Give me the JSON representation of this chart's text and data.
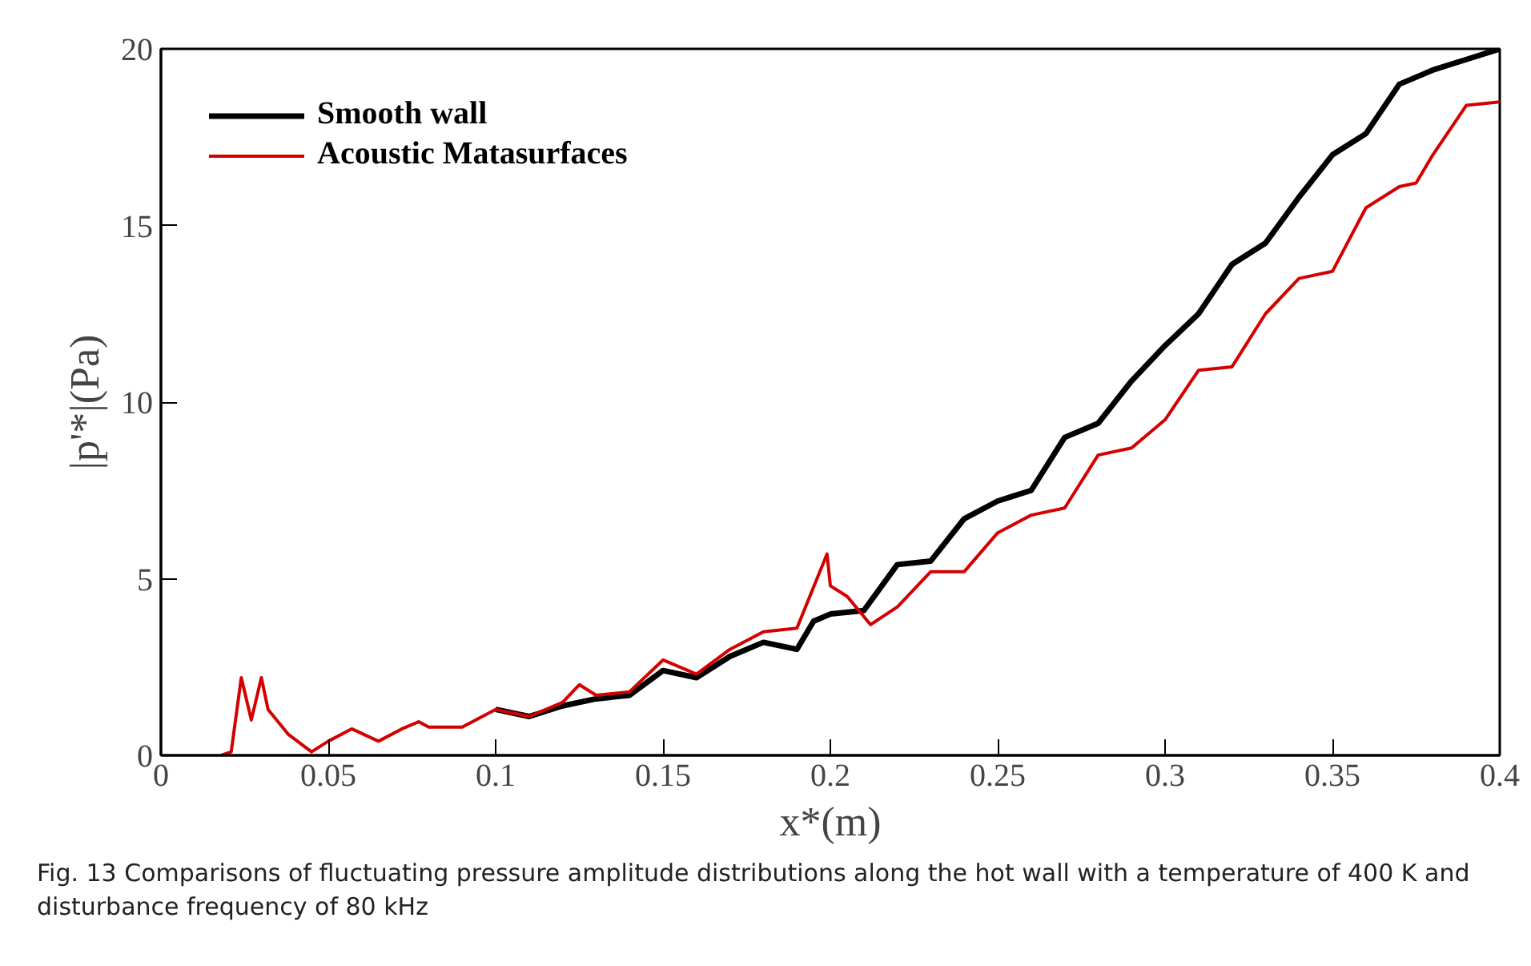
{
  "chart_data": {
    "type": "line",
    "xlabel": "x*(m)",
    "ylabel": "|p'*|(Pa)",
    "xlim": [
      0,
      0.4
    ],
    "ylim": [
      0,
      20
    ],
    "xticks": [
      0,
      0.05,
      0.1,
      0.15,
      0.2,
      0.25,
      0.3,
      0.35,
      0.4
    ],
    "yticks": [
      0,
      5,
      10,
      15,
      20
    ],
    "grid": false,
    "legend": "top left",
    "line_style": "solid",
    "series": [
      {
        "name": "Smooth wall",
        "color": "#000000",
        "x": [
          0.1,
          0.11,
          0.12,
          0.13,
          0.14,
          0.15,
          0.16,
          0.17,
          0.18,
          0.19,
          0.195,
          0.2,
          0.21,
          0.22,
          0.23,
          0.24,
          0.25,
          0.26,
          0.27,
          0.28,
          0.29,
          0.3,
          0.31,
          0.32,
          0.33,
          0.34,
          0.35,
          0.36,
          0.37,
          0.38,
          0.39,
          0.4
        ],
        "values": [
          1.3,
          1.1,
          1.4,
          1.6,
          1.7,
          2.4,
          2.2,
          2.8,
          3.2,
          3.0,
          3.8,
          4.0,
          4.1,
          5.4,
          5.5,
          6.7,
          7.2,
          7.5,
          9.0,
          9.4,
          10.6,
          11.6,
          12.5,
          13.9,
          14.5,
          15.8,
          17.0,
          17.6,
          19.0,
          19.4,
          19.7,
          20.0
        ]
      },
      {
        "name": "Acoustic Matasurfaces",
        "color": "#d40000",
        "x": [
          0.018,
          0.021,
          0.024,
          0.027,
          0.03,
          0.032,
          0.038,
          0.045,
          0.05,
          0.057,
          0.065,
          0.072,
          0.077,
          0.08,
          0.09,
          0.1,
          0.11,
          0.12,
          0.125,
          0.13,
          0.14,
          0.15,
          0.16,
          0.17,
          0.18,
          0.19,
          0.199,
          0.2,
          0.205,
          0.212,
          0.22,
          0.23,
          0.24,
          0.25,
          0.26,
          0.27,
          0.28,
          0.29,
          0.3,
          0.31,
          0.32,
          0.33,
          0.34,
          0.35,
          0.36,
          0.37,
          0.375,
          0.38,
          0.39,
          0.4
        ],
        "values": [
          0,
          0.1,
          2.2,
          1.0,
          2.2,
          1.3,
          0.6,
          0.1,
          0.4,
          0.75,
          0.4,
          0.75,
          0.95,
          0.8,
          0.8,
          1.3,
          1.1,
          1.5,
          2.0,
          1.7,
          1.8,
          2.7,
          2.3,
          3.0,
          3.5,
          3.6,
          5.7,
          4.8,
          4.5,
          3.7,
          4.2,
          5.2,
          5.2,
          6.3,
          6.8,
          7.0,
          8.5,
          8.7,
          9.5,
          10.9,
          11.0,
          12.5,
          13.5,
          13.7,
          15.5,
          16.1,
          16.2,
          17.0,
          18.4,
          18.5
        ]
      }
    ],
    "annotations": [
      "Fig. 13  Comparisons of fluctuating pressure amplitude distributions along the hot wall with a temperature of 400 K and disturbance frequency of 80 kHz"
    ]
  }
}
